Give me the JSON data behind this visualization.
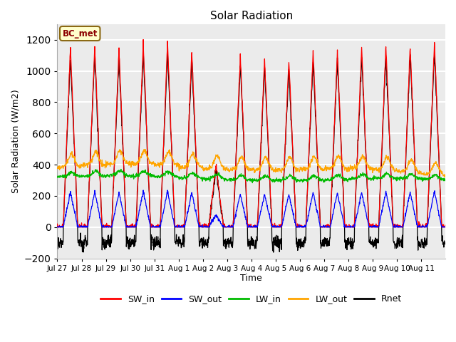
{
  "title": "Solar Radiation",
  "xlabel": "Time",
  "ylabel": "Solar Radiation (W/m2)",
  "ylim": [
    -200,
    1300
  ],
  "yticks": [
    -200,
    0,
    200,
    400,
    600,
    800,
    1000,
    1200
  ],
  "annotation_text": "BC_met",
  "annotation_color": "#8B0000",
  "annotation_bg": "#FFFFCC",
  "annotation_edge": "#8B6914",
  "colors": {
    "SW_in": "#FF0000",
    "SW_out": "#0000FF",
    "LW_in": "#00BB00",
    "LW_out": "#FFA500",
    "Rnet": "#000000"
  },
  "legend_labels": [
    "SW_in",
    "SW_out",
    "LW_in",
    "LW_out",
    "Rnet"
  ],
  "plot_bg": "#EBEBEB",
  "grid_color": "#FFFFFF",
  "n_days": 16,
  "pts_per_day": 96,
  "sw_peaks": [
    1150,
    1160,
    1140,
    1180,
    1185,
    1130,
    400,
    1100,
    1080,
    1070,
    1130,
    1120,
    1150,
    1160,
    1160,
    1180
  ],
  "rnet_night": -100,
  "tick_labels": [
    "Jul 27",
    "Jul 28",
    "Jul 29",
    "Jul 30",
    "Jul 31",
    "Aug 1",
    "Aug 2",
    "Aug 3",
    "Aug 4",
    "Aug 5",
    "Aug 6",
    "Aug 7",
    "Aug 8",
    "Aug 9",
    "Aug 10",
    "Aug 11"
  ]
}
